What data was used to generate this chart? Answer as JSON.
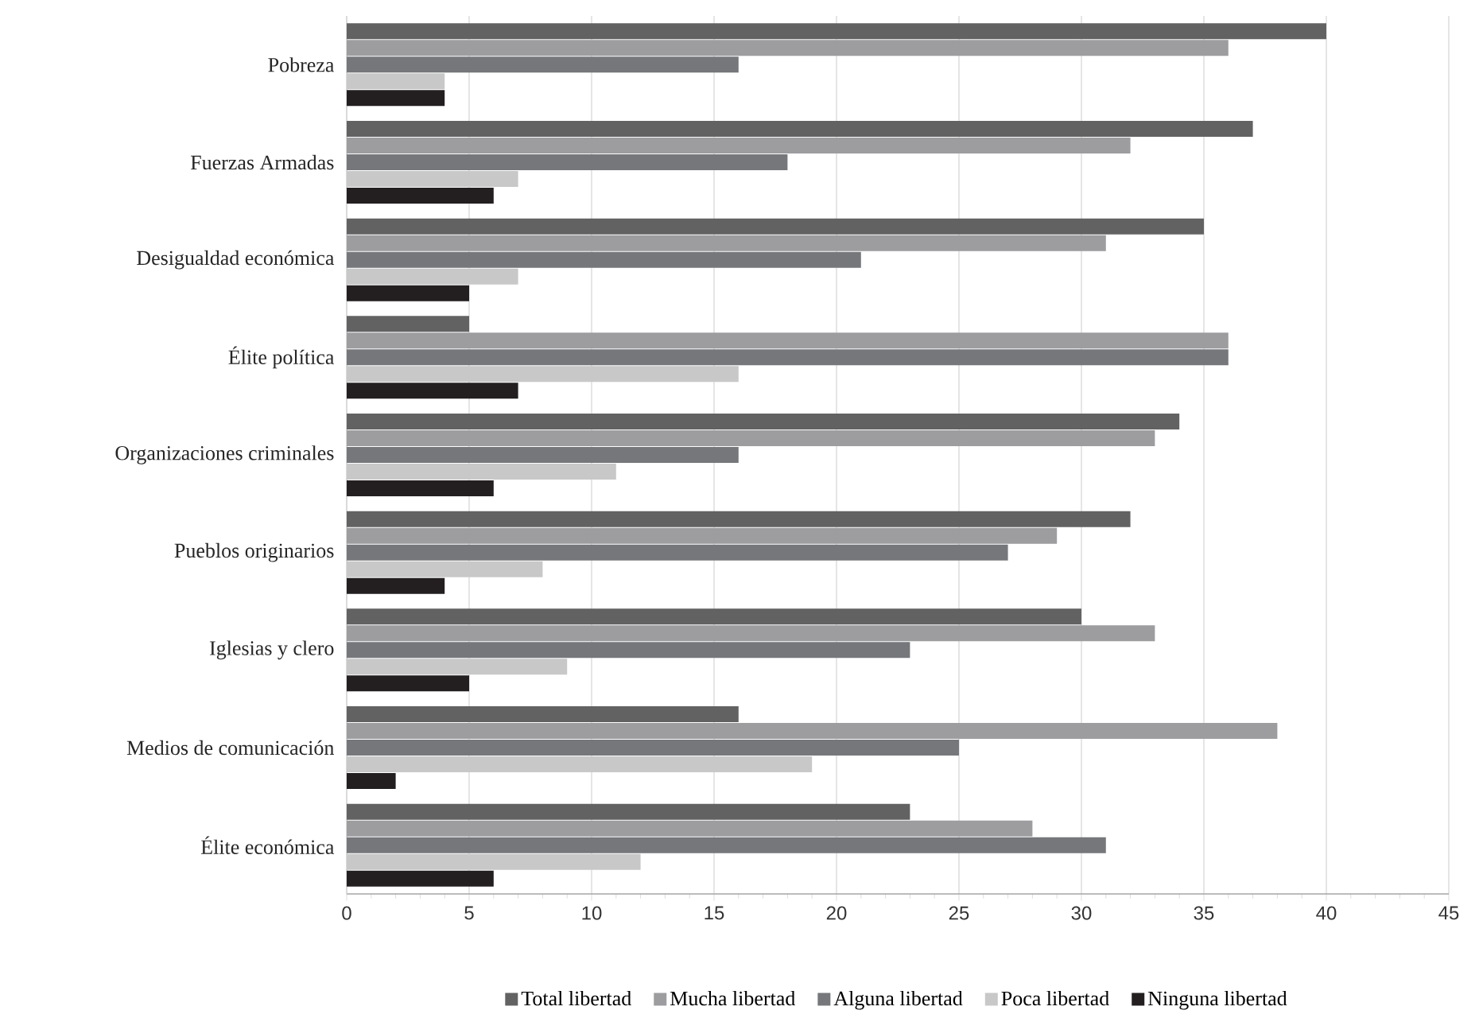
{
  "chart_data": {
    "type": "bar",
    "orientation": "horizontal",
    "categories": [
      "Pobreza",
      "Fuerzas Armadas",
      "Desigualdad económica",
      "Élite política",
      "Organizaciones criminales",
      "Pueblos originarios",
      "Iglesias y clero",
      "Medios de comunicación",
      "Élite económica"
    ],
    "series": [
      {
        "name": "Total libertad",
        "color": "#626262",
        "values": [
          40,
          37,
          35,
          5,
          34,
          32,
          30,
          16,
          23
        ]
      },
      {
        "name": "Mucha libertad",
        "color": "#9d9da0",
        "values": [
          36,
          32,
          31,
          36,
          33,
          29,
          33,
          38,
          28
        ]
      },
      {
        "name": "Alguna libertad",
        "color": "#76777b",
        "values": [
          16,
          18,
          21,
          36,
          16,
          27,
          23,
          25,
          31
        ]
      },
      {
        "name": "Poca libertad",
        "color": "#c8c8c8",
        "values": [
          4,
          7,
          7,
          16,
          11,
          8,
          9,
          19,
          12
        ]
      },
      {
        "name": "Ninguna libertad",
        "color": "#231f20",
        "values": [
          4,
          6,
          5,
          7,
          6,
          4,
          5,
          2,
          6
        ]
      }
    ],
    "xlim": [
      0,
      45
    ],
    "xticks": [
      0,
      5,
      10,
      15,
      20,
      25,
      30,
      35,
      40,
      45
    ],
    "grid": "x",
    "legend": "bottom"
  }
}
